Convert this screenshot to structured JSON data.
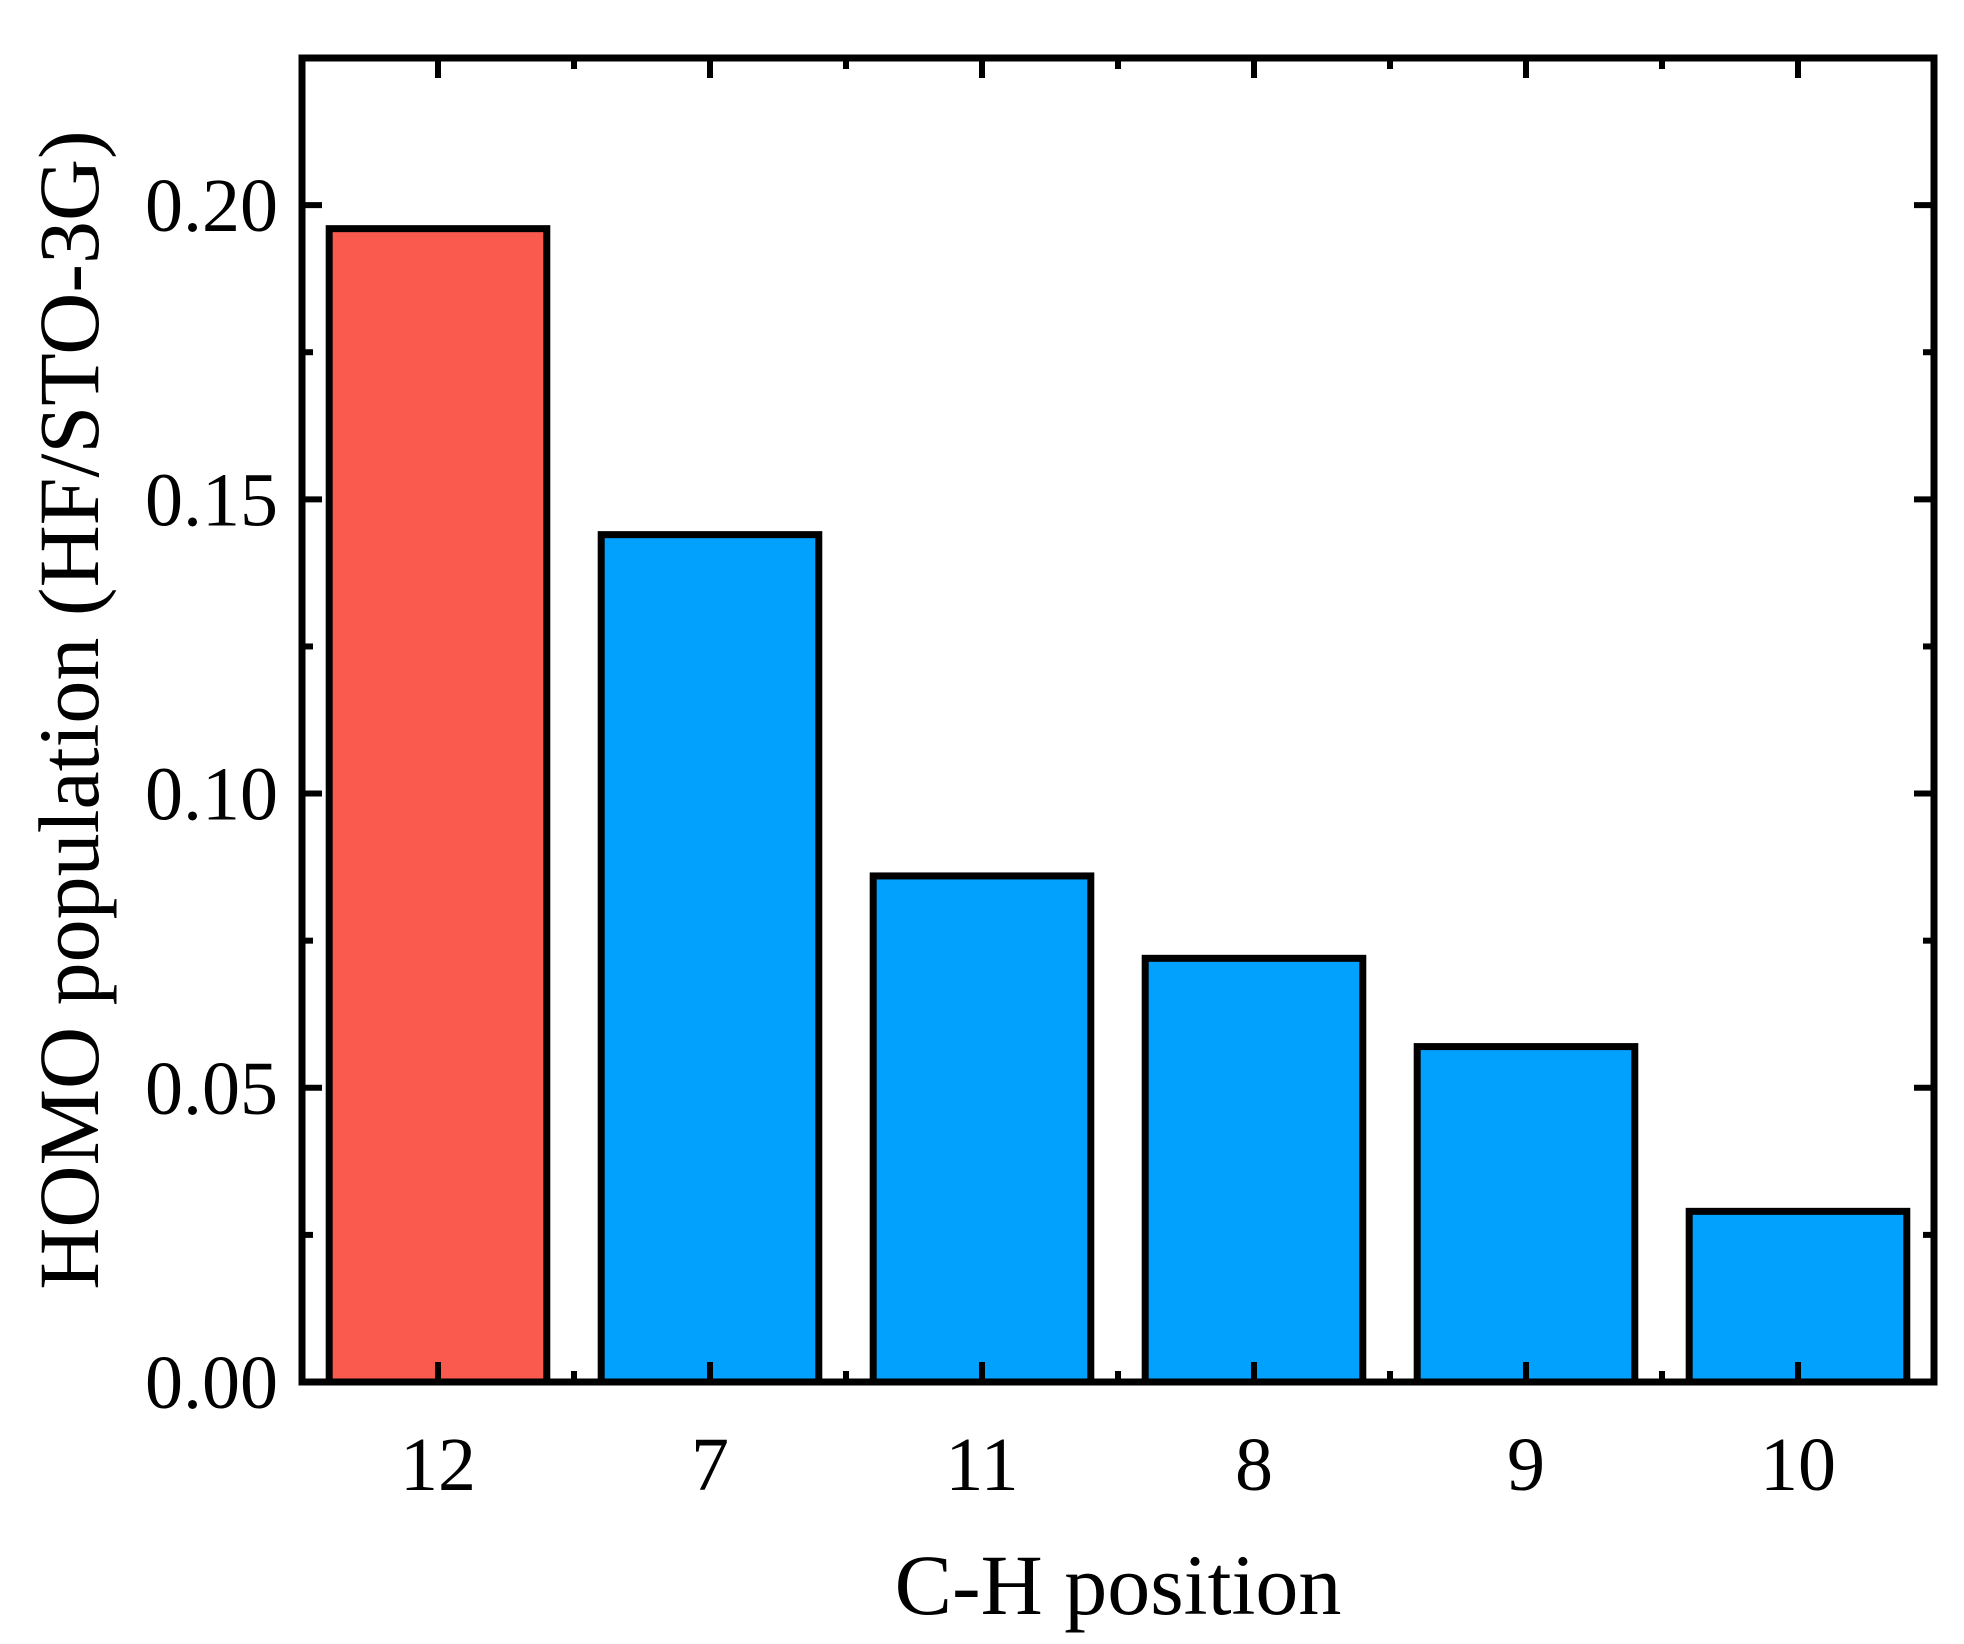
{
  "chart_data": {
    "type": "bar",
    "title": "",
    "xlabel": "C-H position",
    "ylabel": "HOMO population (HF/STO-3G)",
    "categories": [
      "12",
      "7",
      "11",
      "8",
      "9",
      "10"
    ],
    "values": [
      0.196,
      0.144,
      0.086,
      0.072,
      0.057,
      0.029
    ],
    "bar_colors": [
      "#FA5A4E",
      "#02A1FD",
      "#02A1FD",
      "#02A1FD",
      "#02A1FD",
      "#02A1FD"
    ],
    "bar_edge_color": "#000000",
    "ylim": [
      0,
      0.225
    ],
    "yticks": [
      0.0,
      0.05,
      0.1,
      0.15,
      0.2
    ],
    "ytick_labels": [
      "0.00",
      "0.05",
      "0.10",
      "0.15",
      "0.20"
    ],
    "y_minor_step": 0.025,
    "grid": false,
    "legend": "none"
  }
}
